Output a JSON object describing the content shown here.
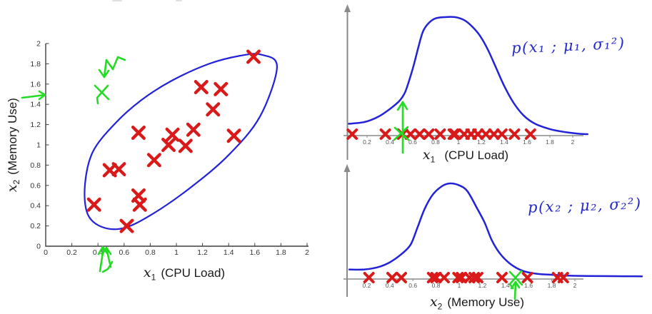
{
  "colors": {
    "marker_red": "#d91a1a",
    "curve_blue": "#2222d9",
    "pen_green": "#25dc25",
    "axis_dark": "#3f3f3f",
    "axis_gray": "#8a8a8a",
    "formula_blue": "#2328cd"
  },
  "chart_data": [
    {
      "id": "scatter",
      "type": "scatter",
      "xlabel": {
        "math": "x",
        "sub": "1",
        "text": "(CPU Load)"
      },
      "ylabel": {
        "math": "x",
        "sub": "2",
        "text": "(Memory Use)"
      },
      "xlim": [
        0,
        2
      ],
      "ylim": [
        0,
        2
      ],
      "grid": false,
      "xticks": [
        "0",
        "0.2",
        "0.4",
        "0.6",
        "0.8",
        "1",
        "1.2",
        "1.4",
        "1.6",
        "1.8",
        "2"
      ],
      "yticks": [
        "0",
        "0.2",
        "0.4",
        "0.6",
        "0.8",
        "1",
        "1.2",
        "1.4",
        "1.6",
        "1.8",
        "2"
      ],
      "points": [
        [
          1.59,
          1.87
        ],
        [
          1.19,
          1.57
        ],
        [
          1.34,
          1.55
        ],
        [
          1.28,
          1.35
        ],
        [
          1.13,
          1.15
        ],
        [
          0.71,
          1.12
        ],
        [
          0.97,
          1.1
        ],
        [
          1.44,
          1.09
        ],
        [
          0.94,
          1.0
        ],
        [
          1.07,
          0.99
        ],
        [
          0.83,
          0.85
        ],
        [
          0.49,
          0.75
        ],
        [
          0.56,
          0.76
        ],
        [
          0.71,
          0.5
        ],
        [
          0.72,
          0.41
        ],
        [
          0.37,
          0.41
        ],
        [
          0.62,
          0.2
        ]
      ],
      "contour": [
        [
          1.65,
          1.89
        ],
        [
          1.77,
          1.77
        ],
        [
          1.64,
          1.28
        ],
        [
          1.4,
          0.9
        ],
        [
          1.11,
          0.58
        ],
        [
          0.82,
          0.32
        ],
        [
          0.6,
          0.18
        ],
        [
          0.43,
          0.19
        ],
        [
          0.32,
          0.32
        ],
        [
          0.3,
          0.6
        ],
        [
          0.36,
          0.93
        ],
        [
          0.53,
          1.21
        ],
        [
          0.73,
          1.44
        ],
        [
          0.96,
          1.63
        ],
        [
          1.25,
          1.8
        ],
        [
          1.49,
          1.88
        ]
      ]
    },
    {
      "id": "px1",
      "type": "line",
      "formula": "p(x₁ ; μ₁, σ₁²)",
      "xlabel": {
        "math": "x",
        "sub": "1",
        "text": "(CPU Load)"
      },
      "xlim": [
        0,
        2
      ],
      "xticks": [
        "0.2",
        "0.4",
        "0.6",
        "0.8",
        "1",
        "1.2",
        "1.4",
        "1.6",
        "1.8",
        "2"
      ],
      "rug": [
        0.07,
        0.36,
        0.51,
        0.58,
        0.66,
        0.74,
        0.84,
        0.955,
        0.97,
        1.05,
        1.11,
        1.17,
        1.24,
        1.31,
        1.38,
        1.49,
        1.63
      ],
      "curve": [
        [
          0.04,
          0.1
        ],
        [
          0.18,
          0.115
        ],
        [
          0.3,
          0.16
        ],
        [
          0.4,
          0.225
        ],
        [
          0.48,
          0.29
        ],
        [
          0.53,
          0.36
        ],
        [
          0.57,
          0.47
        ],
        [
          0.61,
          0.6
        ],
        [
          0.65,
          0.75
        ],
        [
          0.69,
          0.88
        ],
        [
          0.74,
          0.95
        ],
        [
          0.8,
          0.99
        ],
        [
          0.88,
          1.0
        ],
        [
          0.97,
          1.0
        ],
        [
          1.05,
          0.975
        ],
        [
          1.12,
          0.92
        ],
        [
          1.19,
          0.84
        ],
        [
          1.26,
          0.72
        ],
        [
          1.33,
          0.57
        ],
        [
          1.4,
          0.42
        ],
        [
          1.48,
          0.28
        ],
        [
          1.57,
          0.17
        ],
        [
          1.67,
          0.1
        ],
        [
          1.8,
          0.055
        ],
        [
          1.93,
          0.03
        ],
        [
          2.06,
          0.015
        ],
        [
          2.13,
          0.012
        ]
      ]
    },
    {
      "id": "px2",
      "type": "line",
      "formula": "p(x₂ ; μ₂, σ₂²)",
      "xlabel": {
        "math": "x",
        "sub": "2",
        "text": "(Memory Use)"
      },
      "xlim": [
        0,
        2
      ],
      "xticks": [
        "0.2",
        "0.4",
        "0.6",
        "0.8",
        "1",
        "1.2",
        "1.4",
        "1.6",
        "1.8",
        "2"
      ],
      "rug": [
        0.22,
        0.42,
        0.5,
        0.77,
        0.8,
        0.87,
        0.99,
        1.02,
        1.09,
        1.13,
        1.16,
        1.37,
        1.59,
        1.85,
        1.9
      ],
      "curve": [
        [
          0.05,
          0.1
        ],
        [
          0.18,
          0.1
        ],
        [
          0.3,
          0.125
        ],
        [
          0.4,
          0.175
        ],
        [
          0.5,
          0.26
        ],
        [
          0.58,
          0.36
        ],
        [
          0.64,
          0.54
        ],
        [
          0.7,
          0.73
        ],
        [
          0.77,
          0.88
        ],
        [
          0.85,
          0.97
        ],
        [
          0.92,
          1.0
        ],
        [
          1.0,
          0.98
        ],
        [
          1.07,
          0.92
        ],
        [
          1.15,
          0.75
        ],
        [
          1.22,
          0.59
        ],
        [
          1.28,
          0.41
        ],
        [
          1.35,
          0.27
        ],
        [
          1.44,
          0.16
        ],
        [
          1.55,
          0.085
        ],
        [
          1.67,
          0.055
        ],
        [
          1.8,
          0.045
        ],
        [
          1.95,
          0.035
        ],
        [
          2.1,
          0.032
        ],
        [
          2.35,
          0.03
        ],
        [
          2.58,
          0.028
        ]
      ]
    }
  ],
  "annotations": {
    "green_strokes": [
      {
        "name": "scatter-zigzag-arrow",
        "pts": [
          [
            175,
            84
          ],
          [
            165,
            80
          ],
          [
            158,
            97
          ],
          [
            149,
            84
          ],
          [
            146,
            107
          ]
        ]
      },
      {
        "name": "scatter-zigzag-arrowhead",
        "pts": [
          [
            139,
            98
          ],
          [
            146,
            108
          ],
          [
            152,
            99
          ]
        ]
      },
      {
        "name": "scatter-green-x-stroke-1",
        "pts": [
          [
            133,
            120
          ],
          [
            152,
            139
          ]
        ]
      },
      {
        "name": "scatter-green-x-stroke-2",
        "pts": [
          [
            151,
            120
          ],
          [
            136,
            137
          ],
          [
            137,
            145
          ]
        ]
      },
      {
        "name": "scatter-left-arrow",
        "pts": [
          [
            31,
            137
          ],
          [
            63,
            133
          ]
        ]
      },
      {
        "name": "scatter-left-arrowhead",
        "pts": [
          [
            55,
            128
          ],
          [
            63,
            133
          ],
          [
            55,
            139
          ]
        ]
      },
      {
        "name": "scatter-bottom-arrow-1",
        "pts": [
          [
            140,
            380
          ],
          [
            145,
            347
          ]
        ]
      },
      {
        "name": "scatter-bottom-arrowhead-1",
        "pts": [
          [
            138,
            356
          ],
          [
            144,
            346
          ],
          [
            150,
            355
          ]
        ]
      },
      {
        "name": "scatter-bottom-arrow-2",
        "pts": [
          [
            155,
            374
          ],
          [
            149,
            348
          ]
        ]
      },
      {
        "name": "scatter-bottom-arrowhead-2",
        "pts": [
          [
            143,
            357
          ],
          [
            149,
            347
          ],
          [
            155,
            356
          ]
        ]
      },
      {
        "name": "scatter-bottom-hook",
        "pts": [
          [
            157,
            367
          ],
          [
            151,
            377
          ],
          [
            144,
            381
          ]
        ]
      },
      {
        "name": "px1-up-arrow",
        "pts": [
          [
            564,
            214
          ],
          [
            564,
            143
          ]
        ]
      },
      {
        "name": "px1-up-arrowhead",
        "pts": [
          [
            557,
            154
          ],
          [
            564,
            143
          ],
          [
            570,
            153
          ]
        ]
      },
      {
        "name": "px1-green-x-stroke-1",
        "pts": [
          [
            553,
            179
          ],
          [
            572,
            196
          ]
        ]
      },
      {
        "name": "px1-green-x-stroke-2",
        "pts": [
          [
            571,
            178
          ],
          [
            552,
            196
          ]
        ]
      },
      {
        "name": "px2-up-arrow",
        "pts": [
          [
            721,
            419
          ],
          [
            722,
            396
          ]
        ]
      },
      {
        "name": "px2-up-arrowhead",
        "pts": [
          [
            716,
            404
          ],
          [
            722,
            395
          ],
          [
            727,
            403
          ]
        ]
      },
      {
        "name": "px2-green-x-stroke-1",
        "pts": [
          [
            714,
            381
          ],
          [
            731,
            399
          ]
        ]
      },
      {
        "name": "px2-green-x-stroke-2",
        "pts": [
          [
            730,
            380
          ],
          [
            714,
            398
          ],
          [
            718,
            404
          ]
        ]
      }
    ]
  }
}
